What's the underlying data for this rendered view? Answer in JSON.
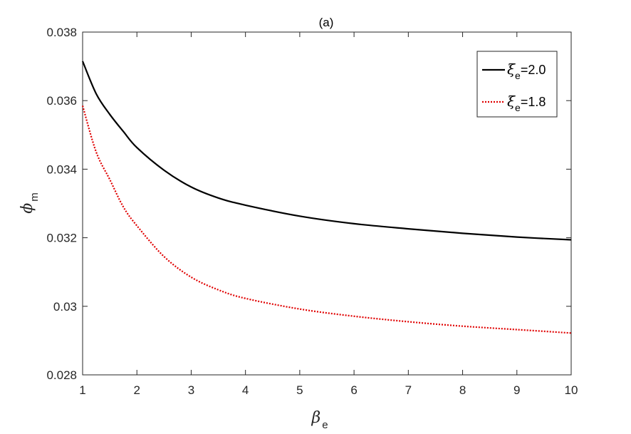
{
  "chart_data": {
    "type": "line",
    "title": "(a)",
    "xlabel": {
      "symbol": "β",
      "sub": "e"
    },
    "ylabel": {
      "symbol": "ϕ",
      "sub": "m"
    },
    "xlim": [
      1,
      10
    ],
    "ylim": [
      0.028,
      0.038
    ],
    "x_ticks": [
      1,
      2,
      3,
      4,
      5,
      6,
      7,
      8,
      9,
      10
    ],
    "x_tick_labels": [
      "1",
      "2",
      "3",
      "4",
      "5",
      "6",
      "7",
      "8",
      "9",
      "10"
    ],
    "y_ticks": [
      0.028,
      0.03,
      0.032,
      0.034,
      0.036,
      0.038
    ],
    "y_tick_labels": [
      "0.028",
      "0.03",
      "0.032",
      "0.034",
      "0.036",
      "0.038"
    ],
    "grid": false,
    "legend_position": "top-right",
    "x": [
      1,
      1.25,
      1.5,
      1.75,
      2,
      2.5,
      3,
      3.5,
      4,
      5,
      6,
      7,
      8,
      9,
      10
    ],
    "series": [
      {
        "name": "ξe=2.0",
        "legend": {
          "symbol": "ξ",
          "sub": "e",
          "value": "=2.0"
        },
        "color": "#000000",
        "style": "solid",
        "values": [
          0.03715,
          0.0362,
          0.0356,
          0.0351,
          0.03463,
          0.03397,
          0.03348,
          0.03316,
          0.03295,
          0.03263,
          0.03241,
          0.03226,
          0.03213,
          0.03202,
          0.03194
        ]
      },
      {
        "name": "ξe=1.8",
        "legend": {
          "symbol": "ξ",
          "sub": "e",
          "value": "=1.8"
        },
        "color": "#e00000",
        "style": "dotted",
        "values": [
          0.03585,
          0.0345,
          0.0337,
          0.0329,
          0.03235,
          0.03145,
          0.03085,
          0.03048,
          0.03023,
          0.02992,
          0.02971,
          0.02955,
          0.02942,
          0.02932,
          0.02922
        ]
      }
    ]
  }
}
